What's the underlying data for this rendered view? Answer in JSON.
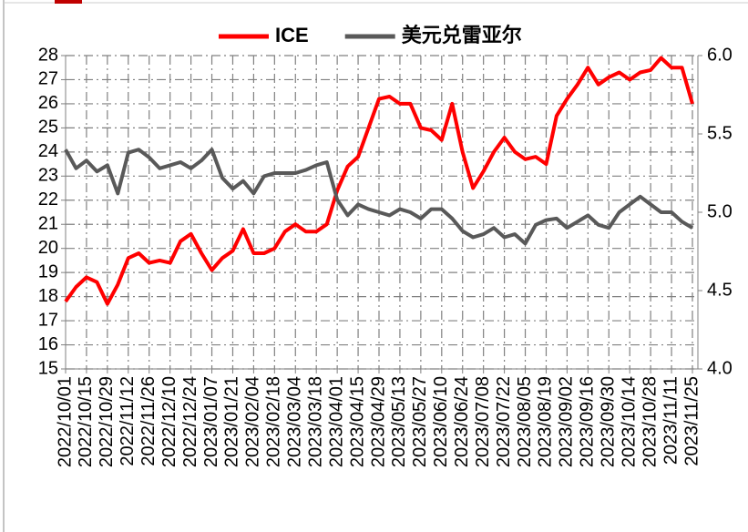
{
  "chart_data": {
    "type": "line",
    "legend": "top",
    "grid": true,
    "categories": [
      "2022/10/01",
      null,
      "2022/10/15",
      null,
      "2022/10/29",
      null,
      "2022/11/12",
      null,
      "2022/11/26",
      null,
      "2022/12/10",
      null,
      "2022/12/24",
      null,
      "2023/01/07",
      null,
      "2023/01/21",
      null,
      "2023/02/04",
      null,
      "2023/02/18",
      null,
      "2023/03/04",
      null,
      "2023/03/18",
      null,
      "2023/04/01",
      null,
      "2023/04/15",
      null,
      "2023/04/29",
      null,
      "2023/05/13",
      null,
      "2023/05/27",
      null,
      "2023/06/10",
      null,
      "2023/06/24",
      null,
      "2023/07/08",
      null,
      "2023/07/22",
      null,
      "2023/08/05",
      null,
      "2023/08/19",
      null,
      "2023/09/02",
      null,
      "2023/09/16",
      null,
      "2023/09/30",
      null,
      "2023/10/14",
      null,
      "2023/10/28",
      null,
      "2023/11/11",
      null,
      "2023/11/25"
    ],
    "series": [
      {
        "name": "ICE",
        "color": "#ff0000",
        "axis": "y",
        "values": [
          17.8,
          18.4,
          18.8,
          18.6,
          17.7,
          18.5,
          19.6,
          19.8,
          19.4,
          19.5,
          19.4,
          20.3,
          20.6,
          19.8,
          19.1,
          19.6,
          19.9,
          20.8,
          19.8,
          19.8,
          20.0,
          20.7,
          21.0,
          20.7,
          20.7,
          21.0,
          22.4,
          23.4,
          23.8,
          25.0,
          26.2,
          26.3,
          26.0,
          26.0,
          25.0,
          24.9,
          24.5,
          26.0,
          24.0,
          22.5,
          23.2,
          24.0,
          24.6,
          24.0,
          23.7,
          23.8,
          23.5,
          25.5,
          26.2,
          26.8,
          27.5,
          26.8,
          27.1,
          27.3,
          27.0,
          27.3,
          27.4,
          27.9,
          27.5,
          27.5,
          26.0
        ]
      },
      {
        "name": "美元兑雷亚尔",
        "color": "#595959",
        "axis": "y2",
        "values": [
          5.4,
          5.28,
          5.33,
          5.26,
          5.3,
          5.12,
          5.38,
          5.4,
          5.35,
          5.28,
          5.3,
          5.32,
          5.28,
          5.33,
          5.4,
          5.22,
          5.15,
          5.2,
          5.12,
          5.23,
          5.25,
          5.25,
          5.25,
          5.27,
          5.3,
          5.32,
          5.08,
          4.98,
          5.05,
          5.02,
          5.0,
          4.98,
          5.02,
          5.0,
          4.96,
          5.02,
          5.02,
          4.96,
          4.88,
          4.84,
          4.86,
          4.9,
          4.84,
          4.86,
          4.8,
          4.92,
          4.95,
          4.96,
          4.9,
          4.94,
          4.98,
          4.92,
          4.9,
          5.0,
          5.05,
          5.1,
          5.05,
          5.0,
          5.0,
          4.94,
          4.9
        ]
      }
    ],
    "ylim": [
      15,
      28
    ],
    "yticks": [
      15,
      16,
      17,
      18,
      19,
      20,
      21,
      22,
      23,
      24,
      25,
      26,
      27,
      28
    ],
    "y2lim": [
      4.0,
      6.0
    ],
    "y2ticks": [
      {
        "value": 4.0,
        "label": "4.0"
      },
      {
        "value": 4.5,
        "label": "4.5"
      },
      {
        "value": 5.0,
        "label": "5.0"
      },
      {
        "value": 5.5,
        "label": "5.5"
      },
      {
        "value": 6.0,
        "label": "6.0"
      }
    ]
  }
}
